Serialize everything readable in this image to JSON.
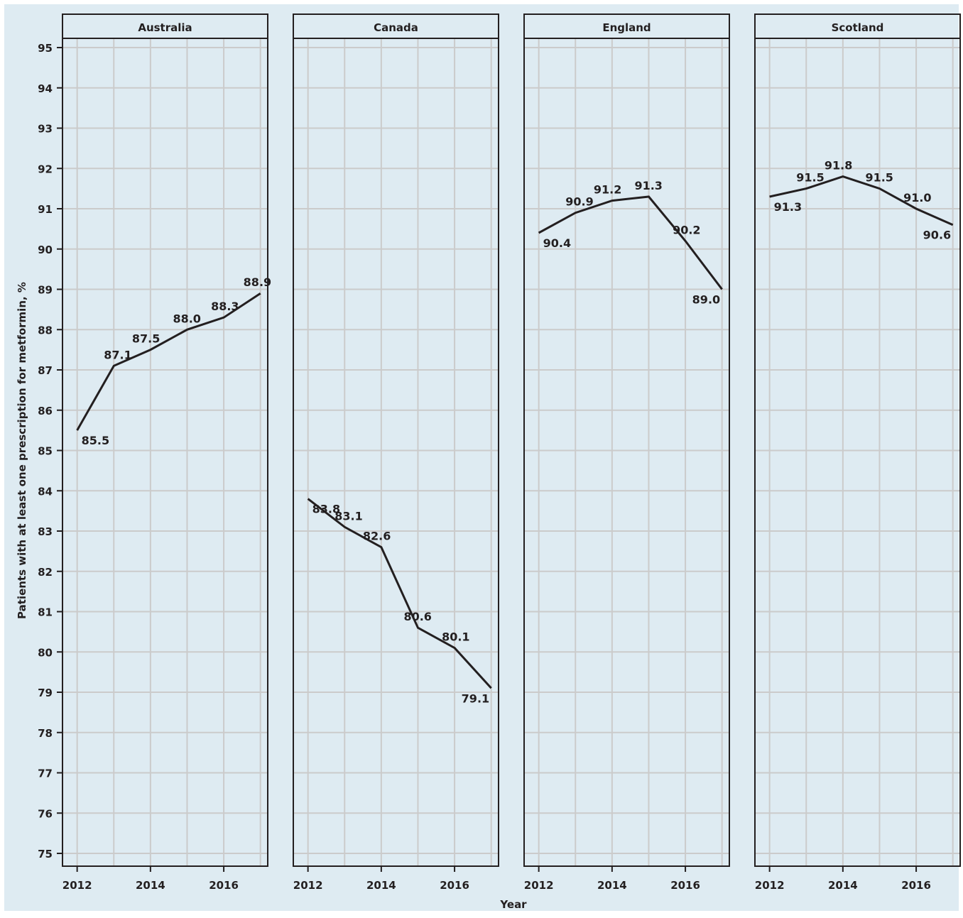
{
  "chart_data": {
    "type": "line",
    "ylabel": "Patients with at least one prescription for metformin, %",
    "xlabel": "Year",
    "ylim": [
      75,
      95
    ],
    "yticks": [
      75,
      76,
      77,
      78,
      79,
      80,
      81,
      82,
      83,
      84,
      85,
      86,
      87,
      88,
      89,
      90,
      91,
      92,
      93,
      94,
      95
    ],
    "xlim": [
      2011.6,
      2017.2
    ],
    "xticks": [
      2012,
      2014,
      2016
    ],
    "grid": true,
    "colors": {
      "background": "#deebf2",
      "grid": "#cbcbcb",
      "line": "#231f20"
    },
    "panels": [
      {
        "title": "Australia",
        "x": [
          2012,
          2013,
          2014,
          2015,
          2016,
          2017
        ],
        "y": [
          85.5,
          87.1,
          87.5,
          88.0,
          88.3,
          88.9
        ],
        "labels": [
          "85.5",
          "87.1",
          "87.5",
          "88.0",
          "88.3",
          "88.9"
        ],
        "label_pos": [
          "below",
          "above",
          "above",
          "above",
          "above",
          "above"
        ]
      },
      {
        "title": "Canada",
        "x": [
          2012,
          2013,
          2014,
          2015,
          2016,
          2017
        ],
        "y": [
          83.8,
          83.1,
          82.6,
          80.6,
          80.1,
          79.1
        ],
        "labels": [
          "83.8",
          "83.1",
          "82.6",
          "80.6",
          "80.1",
          "79.1"
        ],
        "label_pos": [
          "above",
          "above",
          "above",
          "above",
          "above",
          "below"
        ]
      },
      {
        "title": "England",
        "x": [
          2012,
          2013,
          2014,
          2015,
          2016,
          2017
        ],
        "y": [
          90.4,
          90.9,
          91.2,
          91.3,
          90.2,
          89.0
        ],
        "labels": [
          "90.4",
          "90.9",
          "91.2",
          "91.3",
          "90.2",
          "89.0"
        ],
        "label_pos": [
          "below",
          "above",
          "above",
          "above",
          "above",
          "below"
        ]
      },
      {
        "title": "Scotland",
        "x": [
          2012,
          2013,
          2014,
          2015,
          2016,
          2017
        ],
        "y": [
          91.3,
          91.5,
          91.8,
          91.5,
          91.0,
          90.6
        ],
        "labels": [
          "91.3",
          "91.5",
          "91.8",
          "91.5",
          "91.0",
          "90.6"
        ],
        "label_pos": [
          "below",
          "above",
          "above",
          "above",
          "above",
          "below"
        ]
      }
    ]
  }
}
